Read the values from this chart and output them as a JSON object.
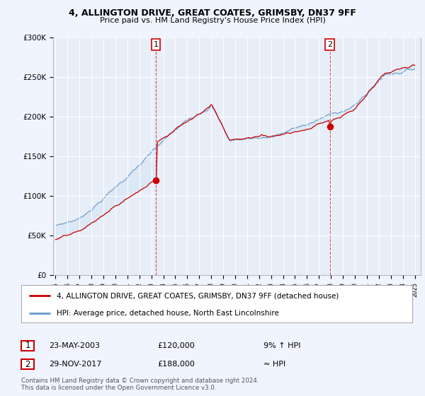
{
  "title": "4, ALLINGTON DRIVE, GREAT COATES, GRIMSBY, DN37 9FF",
  "subtitle": "Price paid vs. HM Land Registry's House Price Index (HPI)",
  "property_label": "4, ALLINGTON DRIVE, GREAT COATES, GRIMSBY, DN37 9FF (detached house)",
  "hpi_label": "HPI: Average price, detached house, North East Lincolnshire",
  "footer": "Contains HM Land Registry data © Crown copyright and database right 2024.\nThis data is licensed under the Open Government Licence v3.0.",
  "property_color": "#cc0000",
  "hpi_color": "#6699cc",
  "fill_color": "#c8ddf0",
  "point1_x": 2003.38,
  "point1_y": 120000,
  "point2_x": 2017.91,
  "point2_y": 188000,
  "point1_label": "1",
  "point2_label": "2",
  "point1_text": "23-MAY-2003",
  "point1_price": "£120,000",
  "point1_hpi": "9% ↑ HPI",
  "point2_text": "29-NOV-2017",
  "point2_price": "£188,000",
  "point2_hpi": "≈ HPI",
  "ylim": [
    0,
    300000
  ],
  "xlim_start": 1994.8,
  "xlim_end": 2025.5,
  "background_color": "#f0f4ff",
  "plot_bg_color": "#e8eef8"
}
